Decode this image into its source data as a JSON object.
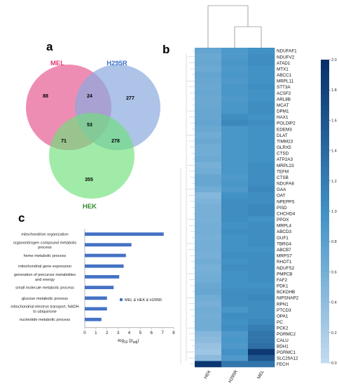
{
  "panels": {
    "a": "a",
    "b": "b",
    "c": "c"
  },
  "venn": {
    "sets": [
      {
        "name": "MEL",
        "color": "#e8326e"
      },
      {
        "name": "H295R",
        "color": "#3b6fc8"
      },
      {
        "name": "HEK",
        "color": "#2e8b2e"
      }
    ],
    "regions": {
      "mel_only": "88",
      "h295r_only": "277",
      "hek_only": "355",
      "mel_h295r": "24",
      "mel_hek": "71",
      "h295r_hek": "278",
      "all": "53"
    }
  },
  "chart_data": [
    {
      "type": "bar",
      "orientation": "horizontal",
      "categories": [
        "mitochondrion organization",
        "organonitrogen compound metabolic process",
        "heme metabolic process",
        "mitochondrial gene expression",
        "generation of precursor metabolites and energy",
        "small molecule metabolic process",
        "glucose metabolic process",
        "mitochondrial electron transport, NADH to ubiquinone",
        "nucleotide metabolic process"
      ],
      "series": [
        {
          "name": "MEL & HEK & H295R",
          "values": [
            7.1,
            4.2,
            3.7,
            3.5,
            3.1,
            2.6,
            2.0,
            2.0,
            1.5
          ]
        }
      ],
      "xticks": [
        "0",
        "1",
        "2",
        "3",
        "4",
        "5",
        "6",
        "7",
        "8"
      ],
      "xlim": [
        0,
        8
      ],
      "xlabel": "-log10 (padj)",
      "legend_position": "center-right",
      "bar_color": "#4472c4"
    },
    {
      "type": "heatmap",
      "columns": [
        "HEK",
        "H295R",
        "MEL"
      ],
      "rows": [
        "NDUFAF1",
        "NDUFV2",
        "ATAD1",
        "MTX1",
        "ABCC1",
        "MRPL11",
        "STT3A",
        "ACSF2",
        "ARL8B",
        "MCAT",
        "DPM1",
        "HAX1",
        "POLDIP2",
        "EDEM3",
        "DLAT",
        "TIMM23",
        "GLRX5",
        "CTSD",
        "ATP2A3",
        "MRPL23",
        "TEFM",
        "CTSB",
        "NDUFA8",
        "GAA",
        "OAT",
        "NPEPPS",
        "PISD",
        "CHCHD4",
        "PPOX",
        "MRPL4",
        "ABCD3",
        "GUF1",
        "TBRG4",
        "ABCB7",
        "MRPS7",
        "RHOT1",
        "NDUFS2",
        "PMPCB",
        "FAF2",
        "PDK1",
        "BCKDHB",
        "NIPSNAP2",
        "RPN1",
        "PTCD3",
        "OPA1",
        "PC",
        "PCK2",
        "PGRMC2",
        "CALU",
        "BDH1",
        "PGRMC1",
        "SLC25A12",
        "FECH"
      ],
      "values": [
        [
          0.75,
          0.9,
          1.0
        ],
        [
          0.7,
          0.9,
          1.05
        ],
        [
          0.72,
          0.95,
          1.05
        ],
        [
          0.68,
          0.9,
          1.0
        ],
        [
          0.75,
          0.95,
          1.0
        ],
        [
          0.72,
          0.9,
          1.0
        ],
        [
          0.7,
          0.95,
          1.05
        ],
        [
          0.73,
          0.95,
          1.0
        ],
        [
          0.7,
          0.9,
          1.0
        ],
        [
          0.7,
          0.95,
          1.05
        ],
        [
          0.72,
          0.95,
          1.05
        ],
        [
          0.72,
          1.05,
          1.0
        ],
        [
          0.75,
          1.1,
          1.05
        ],
        [
          0.7,
          0.95,
          1.0
        ],
        [
          0.65,
          0.95,
          1.0
        ],
        [
          0.7,
          0.95,
          1.0
        ],
        [
          0.65,
          0.95,
          1.0
        ],
        [
          0.65,
          0.95,
          1.0
        ],
        [
          0.68,
          0.95,
          1.0
        ],
        [
          0.6,
          0.95,
          1.05
        ],
        [
          0.65,
          0.95,
          1.05
        ],
        [
          0.72,
          0.9,
          1.05
        ],
        [
          0.72,
          0.95,
          1.05
        ],
        [
          0.65,
          0.9,
          1.1
        ],
        [
          0.5,
          1.0,
          1.05
        ],
        [
          0.55,
          1.05,
          1.05
        ],
        [
          0.6,
          1.05,
          1.1
        ],
        [
          0.6,
          1.05,
          1.1
        ],
        [
          0.6,
          1.05,
          1.0
        ],
        [
          0.62,
          1.0,
          1.05
        ],
        [
          0.62,
          1.05,
          1.05
        ],
        [
          0.6,
          1.0,
          1.05
        ],
        [
          0.62,
          1.0,
          1.05
        ],
        [
          0.62,
          1.0,
          1.0
        ],
        [
          0.6,
          1.05,
          1.05
        ],
        [
          0.65,
          1.0,
          1.05
        ],
        [
          0.6,
          1.05,
          1.05
        ],
        [
          0.62,
          1.0,
          1.05
        ],
        [
          0.65,
          1.0,
          1.05
        ],
        [
          0.7,
          1.0,
          1.0
        ],
        [
          0.72,
          1.05,
          1.05
        ],
        [
          0.65,
          1.05,
          1.1
        ],
        [
          0.6,
          1.05,
          1.05
        ],
        [
          0.65,
          0.95,
          1.05
        ],
        [
          0.62,
          1.05,
          1.05
        ],
        [
          0.65,
          1.0,
          1.1
        ],
        [
          0.65,
          1.05,
          1.2
        ],
        [
          0.5,
          0.9,
          1.3
        ],
        [
          0.45,
          0.95,
          1.3
        ],
        [
          0.35,
          0.9,
          1.35
        ],
        [
          0.3,
          1.0,
          1.9
        ],
        [
          0.45,
          0.9,
          1.6
        ],
        [
          1.95,
          1.3,
          1.3
        ]
      ],
      "colorbar": {
        "min": 0,
        "max": 2,
        "ticks": [
          "0.0",
          "0.2",
          "0.4",
          "0.6",
          "0.8",
          "1.0",
          "1.2",
          "1.4",
          "1.6",
          "1.8",
          "2.0"
        ],
        "color_low": "#c6dbef",
        "color_high": "#08306b"
      }
    }
  ]
}
